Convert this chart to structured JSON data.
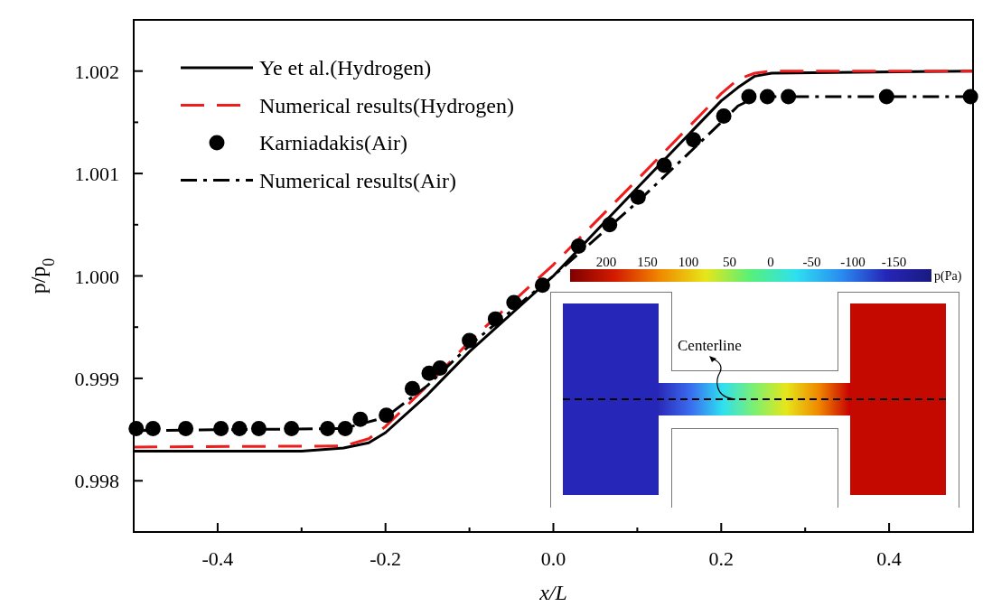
{
  "chart_data": {
    "type": "line",
    "xlabel": "x/L",
    "ylabel": "p/p$_{0}$",
    "xlim": [
      -0.5,
      0.5
    ],
    "xticks": [
      -0.4,
      -0.2,
      {
        "value": 0,
        "label": "0.0"
      },
      0.2,
      0.4
    ],
    "ylim": [
      0.9975,
      1.0025
    ],
    "yticks": [
      0.998,
      0.999,
      {
        "value": 1,
        "label": "1.000"
      },
      1.001,
      1.002
    ],
    "grid": false,
    "legend": "top left",
    "series": [
      {
        "name": "Ye et al.(Hydrogen)",
        "color": "#000000",
        "line_style": "solid",
        "marker": "none",
        "x": [
          -0.5,
          -0.3,
          -0.25,
          -0.22,
          -0.2,
          -0.15,
          -0.1,
          0,
          0.1,
          0.2,
          0.22,
          0.24,
          0.26,
          0.5
        ],
        "values": [
          0.99829,
          0.99829,
          0.99832,
          0.99837,
          0.99847,
          0.99884,
          0.99926,
          1.0,
          1.00086,
          1.00171,
          1.00184,
          1.00195,
          1.00198,
          1.002
        ]
      },
      {
        "name": "Numerical results(Hydrogen)",
        "color": "#ee1c1c",
        "line_style": "dashed",
        "marker": "none",
        "x": [
          -0.5,
          -0.25,
          -0.22,
          -0.2,
          -0.15,
          -0.1,
          0,
          0.1,
          0.2,
          0.22,
          0.24,
          0.26,
          0.5
        ],
        "values": [
          0.99833,
          0.99834,
          0.99841,
          0.99853,
          0.99893,
          0.99936,
          1.00011,
          1.00094,
          1.00178,
          1.00192,
          1.00198,
          1.002,
          1.002
        ]
      },
      {
        "name": "Karniadakis(Air)",
        "type": "scatter",
        "color": "#000000",
        "marker": "circle",
        "x": [
          -0.497,
          -0.477,
          -0.438,
          -0.396,
          -0.374,
          -0.351,
          -0.312,
          -0.269,
          -0.248,
          -0.23,
          -0.199,
          -0.168,
          -0.148,
          -0.135,
          -0.1,
          -0.069,
          -0.047,
          -0.013,
          0.03,
          0.067,
          0.101,
          0.132,
          0.167,
          0.203,
          0.233,
          0.255,
          0.28,
          0.397,
          0.497
        ],
        "values": [
          0.99851,
          0.99851,
          0.99851,
          0.99851,
          0.99851,
          0.99851,
          0.99851,
          0.99851,
          0.99851,
          0.9986,
          0.99864,
          0.9989,
          0.99905,
          0.9991,
          0.99937,
          0.99958,
          0.99974,
          0.99991,
          1.00029,
          1.0005,
          1.00077,
          1.00108,
          1.00133,
          1.00156,
          1.00175,
          1.00175,
          1.00175,
          1.00175,
          1.00175
        ]
      },
      {
        "name": "Numerical results(Air)",
        "color": "#000000",
        "line_style": "dashdot",
        "marker": "none",
        "x": [
          -0.5,
          -0.25,
          -0.2,
          -0.15,
          -0.1,
          0,
          0.1,
          0.15,
          0.2,
          0.22,
          0.24,
          0.26,
          0.5
        ],
        "values": [
          0.99849,
          0.99851,
          0.99862,
          0.99893,
          0.99932,
          1.0,
          1.00072,
          1.00111,
          1.0015,
          1.00166,
          1.00174,
          1.00175,
          1.00175
        ]
      }
    ],
    "annotations": [
      "200",
      "150",
      "100",
      "50",
      "0",
      "-50",
      "-100",
      "-150",
      "p(Pa)",
      "Centerline"
    ]
  }
}
